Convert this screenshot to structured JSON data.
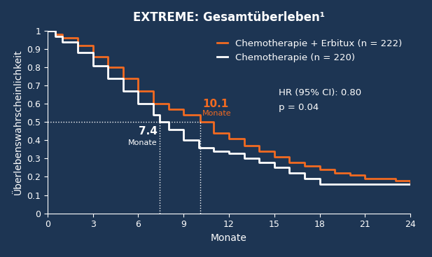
{
  "chart_data": {
    "type": "step",
    "title": "EXTREME: Gesamtüberleben¹",
    "x_label": "Monate",
    "y_label": "Überlebenswahrscheinlichkeit",
    "xlim": [
      0,
      24
    ],
    "ylim": [
      0,
      1
    ],
    "xticks": [
      0,
      3,
      6,
      9,
      12,
      15,
      18,
      21,
      24
    ],
    "yticks": [
      0,
      0.1,
      0.2,
      0.3,
      0.4,
      0.5,
      0.6,
      0.7,
      0.8,
      0.9,
      1
    ],
    "grid": false,
    "legend": "upper right",
    "series": [
      {
        "name": "Chemotherapie + Erbitux (n = 222)",
        "color": "#f26a21",
        "line_style": "solid",
        "median": 10.1,
        "median_unit": "Monate",
        "x": [
          0,
          0.5,
          1,
          2,
          3,
          4,
          5,
          6,
          7,
          8,
          9,
          10.1,
          11,
          12,
          13,
          14,
          15,
          16,
          17,
          18,
          19,
          20,
          21,
          22,
          23,
          24
        ],
        "values": [
          1,
          0.98,
          0.96,
          0.92,
          0.86,
          0.8,
          0.74,
          0.67,
          0.6,
          0.57,
          0.54,
          0.5,
          0.44,
          0.41,
          0.37,
          0.34,
          0.31,
          0.28,
          0.26,
          0.24,
          0.22,
          0.21,
          0.19,
          0.19,
          0.18,
          0.17
        ]
      },
      {
        "name": "Chemotherapie (n = 220)",
        "color": "#ffffff",
        "line_style": "solid",
        "median": 7.4,
        "median_unit": "Monate",
        "x": [
          0,
          0.5,
          1,
          2,
          3,
          4,
          5,
          6,
          7,
          7.4,
          8,
          9,
          10,
          11,
          12,
          13,
          14,
          15,
          16,
          17,
          18,
          19,
          20,
          21,
          22,
          23,
          24
        ],
        "values": [
          1,
          0.97,
          0.94,
          0.88,
          0.81,
          0.74,
          0.67,
          0.6,
          0.54,
          0.5,
          0.46,
          0.4,
          0.36,
          0.34,
          0.33,
          0.3,
          0.28,
          0.25,
          0.22,
          0.19,
          0.16,
          0.16,
          0.16,
          0.16,
          0.16,
          0.16,
          0.16
        ]
      }
    ],
    "annotations": [
      "HR (95% CI): 0.80",
      "p = 0.04"
    ]
  }
}
